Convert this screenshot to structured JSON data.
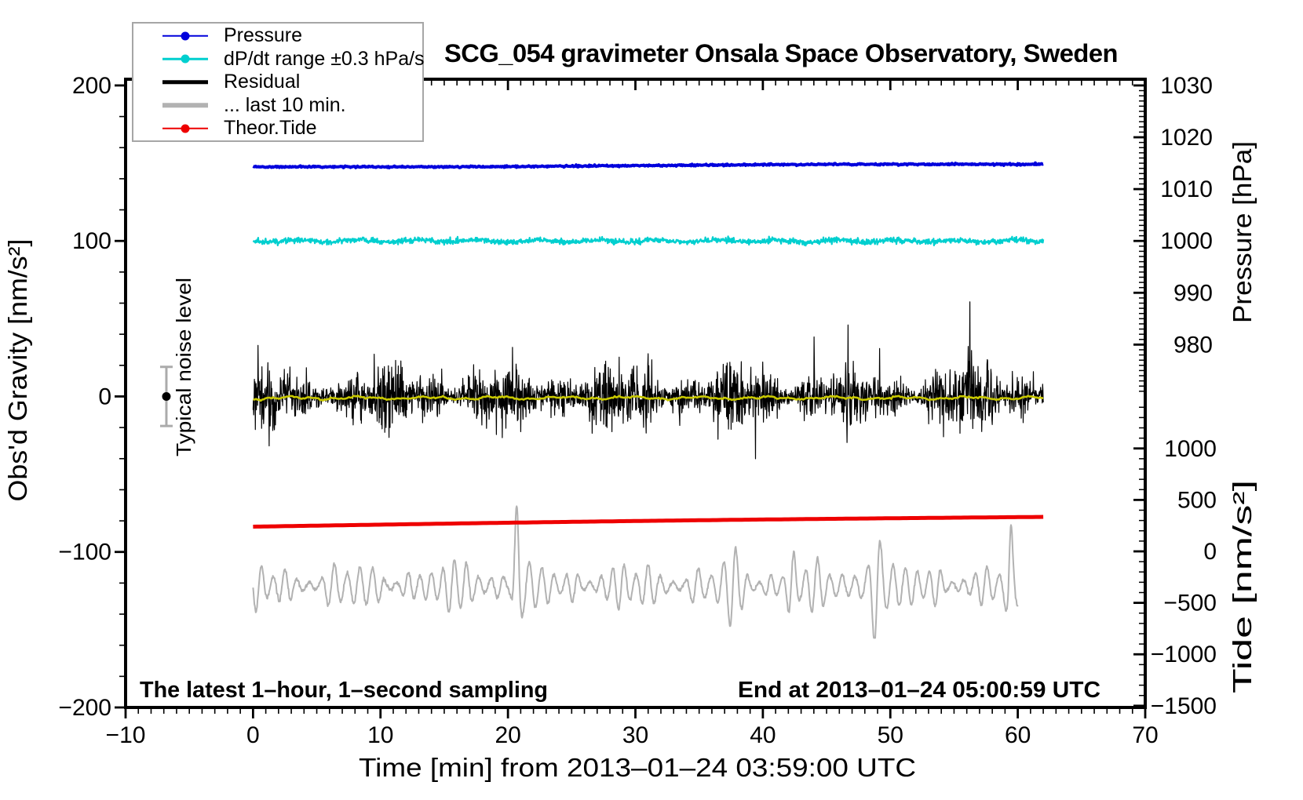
{
  "title": "SCG_054 gravimeter Onsala Space Observatory, Sweden",
  "legend": {
    "items": [
      {
        "label": "Pressure",
        "color": "#0000DC",
        "style": "line-dot"
      },
      {
        "label": "dP/dt range ±0.3 hPa/s",
        "color": "#00CFCF",
        "style": "line-dot"
      },
      {
        "label": "Residual",
        "color": "#000000",
        "style": "line"
      },
      {
        "label": "... last 10 min.",
        "color": "#B2B2B2",
        "style": "line"
      },
      {
        "label": "Theor.Tide",
        "color": "#EE0000",
        "style": "line-dot"
      }
    ]
  },
  "annotations": {
    "noise_label": "Typical noise level",
    "sampling_note": "The latest 1–hour, 1–second sampling",
    "end_note": "End at 2013–01–24 05:00:59 UTC"
  },
  "axes": {
    "x": {
      "label": "Time [min] from 2013–01–24 03:59:00 UTC",
      "min": -10,
      "max": 70,
      "major": 10,
      "minor": 1,
      "major_tick_labels": [
        "−10",
        "0",
        "10",
        "20",
        "30",
        "40",
        "50",
        "60",
        "70"
      ],
      "major_tick_values": [
        -10,
        0,
        10,
        20,
        30,
        40,
        50,
        60,
        70
      ]
    },
    "y_left": {
      "label": "Obs'd Gravity [nm/s²]",
      "min": -200,
      "max": 204,
      "major": 100,
      "minor": 20,
      "major_tick_labels": [
        "−200",
        "−100",
        "0",
        "100",
        "200"
      ],
      "major_tick_values": [
        -200,
        -100,
        0,
        100,
        200
      ]
    },
    "pressure": {
      "label": "Pressure [hPa]",
      "major_tick_labels": [
        "1030",
        "1020",
        "1010",
        "1000",
        "990",
        "980"
      ],
      "major_tick_values": [
        1030,
        1020,
        1010,
        1000,
        990,
        980
      ],
      "minor_step": 1,
      "minor_range": [
        971,
        1031
      ]
    },
    "tide": {
      "label": "Tide [nm/s²]",
      "major_tick_labels": [
        "1000",
        "500",
        "0",
        "−500",
        "−1000",
        "−1500"
      ],
      "major_tick_values": [
        1000,
        500,
        0,
        -500,
        -1000,
        -1500
      ],
      "minor_step": 100,
      "minor_range": [
        -1500,
        1400
      ]
    }
  },
  "chart_data": {
    "type": "line",
    "x_range_min": [
      -10,
      70
    ],
    "series": [
      {
        "name": "Pressure",
        "axis": "pressure_hPa",
        "color": "#0000DC",
        "t_start_min": 0,
        "t_end_min": 62,
        "start_value": 1014.3,
        "end_value": 1014.8,
        "shape": "nearly flat, slight rise after ~15 min"
      },
      {
        "name": "dP/dt range ±0.3 hPa/s",
        "axis": "gravity_nm_s2",
        "color": "#00CFCF",
        "t_start_min": 0,
        "t_end_min": 62,
        "center": 100,
        "noise_halfwidth": 2,
        "shape": "flat noisy band"
      },
      {
        "name": "Residual",
        "axis": "gravity_nm_s2",
        "color": "#000000",
        "t_start_min": 0,
        "t_end_min": 62,
        "center": 0,
        "typical_halfwidth": 20,
        "max_spike": 55,
        "shape": "dense 1-second noise"
      },
      {
        "name": "Residual smoothed",
        "axis": "gravity_nm_s2",
        "color": "#C8C800",
        "t_start_min": 0,
        "t_end_min": 62,
        "center": -1,
        "halfwidth": 1.5,
        "shape": "thin wavy line on top of residual"
      },
      {
        "name": "Theor.Tide",
        "axis": "tide_nm_s2",
        "color": "#EE0000",
        "t_start_min": 0,
        "t_end_min": 62,
        "start_value": 240,
        "end_value": 335,
        "shape": "almost straight, slowly rising line"
      },
      {
        "name": "... last 10 min.",
        "axis": "gravity_nm_s2",
        "color": "#B2B2B2",
        "t_start_min": 0,
        "t_end_min": 60,
        "center": -122,
        "typical_amplitude": 12,
        "burst_times_min": [
          16.8,
          20.7,
          37.6,
          42.3,
          48.9,
          59.4
        ],
        "max_amplitude": 60,
        "shape": "microseism oscillation stretched over plot"
      }
    ],
    "noise_bar": {
      "t_min": -6.8,
      "center": 0,
      "halfwidth": 19
    }
  }
}
